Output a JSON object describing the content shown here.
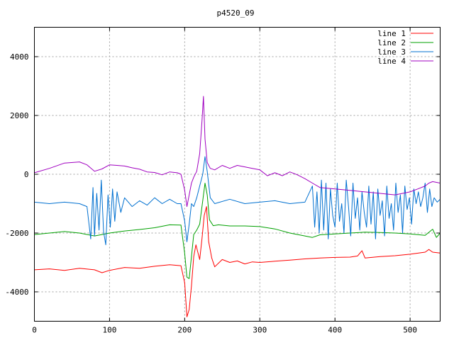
{
  "chart_data": {
    "type": "line",
    "title": "p4520_09",
    "xlabel": "",
    "ylabel": "",
    "xlim": [
      0,
      540
    ],
    "ylim": [
      -5000,
      5000
    ],
    "x_ticks": [
      0,
      100,
      200,
      300,
      400,
      500
    ],
    "y_ticks": [
      -4000,
      -2000,
      0,
      2000,
      4000
    ],
    "grid": true,
    "legend_position": "top-right",
    "series": [
      {
        "name": "line 1",
        "color": "#ff0000",
        "points": [
          [
            0,
            -3250
          ],
          [
            20,
            -3220
          ],
          [
            40,
            -3270
          ],
          [
            60,
            -3200
          ],
          [
            80,
            -3250
          ],
          [
            90,
            -3350
          ],
          [
            100,
            -3270
          ],
          [
            120,
            -3170
          ],
          [
            140,
            -3200
          ],
          [
            160,
            -3130
          ],
          [
            180,
            -3080
          ],
          [
            195,
            -3110
          ],
          [
            200,
            -3700
          ],
          [
            203,
            -4850
          ],
          [
            206,
            -4600
          ],
          [
            209,
            -3800
          ],
          [
            212,
            -2800
          ],
          [
            215,
            -2400
          ],
          [
            220,
            -2900
          ],
          [
            223,
            -2200
          ],
          [
            226,
            -1400
          ],
          [
            229,
            -1100
          ],
          [
            232,
            -2300
          ],
          [
            236,
            -2850
          ],
          [
            240,
            -3150
          ],
          [
            250,
            -2900
          ],
          [
            260,
            -3000
          ],
          [
            270,
            -2950
          ],
          [
            280,
            -3050
          ],
          [
            290,
            -2980
          ],
          [
            300,
            -3000
          ],
          [
            320,
            -2960
          ],
          [
            340,
            -2920
          ],
          [
            360,
            -2880
          ],
          [
            380,
            -2850
          ],
          [
            400,
            -2830
          ],
          [
            420,
            -2820
          ],
          [
            430,
            -2780
          ],
          [
            436,
            -2600
          ],
          [
            440,
            -2850
          ],
          [
            460,
            -2800
          ],
          [
            480,
            -2770
          ],
          [
            500,
            -2720
          ],
          [
            520,
            -2650
          ],
          [
            525,
            -2560
          ],
          [
            530,
            -2650
          ],
          [
            540,
            -2680
          ]
        ]
      },
      {
        "name": "line 2",
        "color": "#00a000",
        "points": [
          [
            0,
            -2050
          ],
          [
            20,
            -2000
          ],
          [
            40,
            -1950
          ],
          [
            60,
            -2000
          ],
          [
            80,
            -2100
          ],
          [
            90,
            -2050
          ],
          [
            100,
            -2000
          ],
          [
            120,
            -1930
          ],
          [
            140,
            -1880
          ],
          [
            160,
            -1820
          ],
          [
            180,
            -1720
          ],
          [
            195,
            -1730
          ],
          [
            200,
            -2700
          ],
          [
            203,
            -3500
          ],
          [
            206,
            -3550
          ],
          [
            209,
            -2800
          ],
          [
            212,
            -2050
          ],
          [
            216,
            -1900
          ],
          [
            220,
            -1700
          ],
          [
            224,
            -900
          ],
          [
            227,
            -300
          ],
          [
            230,
            -700
          ],
          [
            233,
            -1550
          ],
          [
            238,
            -1750
          ],
          [
            245,
            -1720
          ],
          [
            260,
            -1760
          ],
          [
            280,
            -1760
          ],
          [
            300,
            -1780
          ],
          [
            320,
            -1860
          ],
          [
            340,
            -2000
          ],
          [
            360,
            -2100
          ],
          [
            370,
            -2150
          ],
          [
            380,
            -2060
          ],
          [
            400,
            -2030
          ],
          [
            420,
            -2000
          ],
          [
            440,
            -1970
          ],
          [
            460,
            -1980
          ],
          [
            480,
            -2000
          ],
          [
            500,
            -2030
          ],
          [
            520,
            -2080
          ],
          [
            530,
            -1870
          ],
          [
            535,
            -2150
          ],
          [
            540,
            -2000
          ]
        ]
      },
      {
        "name": "line 3",
        "color": "#0070d0",
        "points": [
          [
            0,
            -950
          ],
          [
            20,
            -1000
          ],
          [
            40,
            -950
          ],
          [
            60,
            -1000
          ],
          [
            70,
            -1100
          ],
          [
            75,
            -2200
          ],
          [
            78,
            -450
          ],
          [
            80,
            -2100
          ],
          [
            83,
            -650
          ],
          [
            86,
            -1900
          ],
          [
            89,
            -200
          ],
          [
            92,
            -1950
          ],
          [
            95,
            -2400
          ],
          [
            98,
            -700
          ],
          [
            101,
            -1800
          ],
          [
            104,
            -500
          ],
          [
            107,
            -1600
          ],
          [
            110,
            -600
          ],
          [
            115,
            -1300
          ],
          [
            120,
            -800
          ],
          [
            130,
            -1100
          ],
          [
            140,
            -900
          ],
          [
            150,
            -1050
          ],
          [
            160,
            -800
          ],
          [
            170,
            -1000
          ],
          [
            180,
            -850
          ],
          [
            190,
            -1000
          ],
          [
            195,
            -1000
          ],
          [
            200,
            -1600
          ],
          [
            203,
            -2300
          ],
          [
            206,
            -1700
          ],
          [
            209,
            -1000
          ],
          [
            212,
            -1100
          ],
          [
            216,
            -800
          ],
          [
            220,
            -400
          ],
          [
            224,
            0
          ],
          [
            227,
            600
          ],
          [
            230,
            100
          ],
          [
            234,
            -800
          ],
          [
            240,
            -1000
          ],
          [
            260,
            -850
          ],
          [
            280,
            -1000
          ],
          [
            300,
            -950
          ],
          [
            320,
            -900
          ],
          [
            340,
            -1000
          ],
          [
            360,
            -950
          ],
          [
            370,
            -400
          ],
          [
            373,
            -1800
          ],
          [
            376,
            -600
          ],
          [
            379,
            -2000
          ],
          [
            382,
            -200
          ],
          [
            385,
            -1900
          ],
          [
            388,
            -300
          ],
          [
            391,
            -2200
          ],
          [
            394,
            -500
          ],
          [
            397,
            -1400
          ],
          [
            400,
            -1800
          ],
          [
            403,
            -300
          ],
          [
            406,
            -1600
          ],
          [
            409,
            -1000
          ],
          [
            412,
            -2000
          ],
          [
            415,
            -200
          ],
          [
            418,
            -1100
          ],
          [
            421,
            -2100
          ],
          [
            424,
            -300
          ],
          [
            427,
            -1500
          ],
          [
            430,
            -800
          ],
          [
            433,
            -1900
          ],
          [
            436,
            -600
          ],
          [
            439,
            -1300
          ],
          [
            442,
            -1800
          ],
          [
            445,
            -400
          ],
          [
            448,
            -1700
          ],
          [
            451,
            -600
          ],
          [
            454,
            -2200
          ],
          [
            457,
            -500
          ],
          [
            460,
            -1400
          ],
          [
            463,
            -900
          ],
          [
            466,
            -2100
          ],
          [
            469,
            -400
          ],
          [
            472,
            -1500
          ],
          [
            475,
            -1000
          ],
          [
            478,
            -1900
          ],
          [
            481,
            -300
          ],
          [
            484,
            -1300
          ],
          [
            487,
            -700
          ],
          [
            490,
            -2000
          ],
          [
            493,
            -400
          ],
          [
            496,
            -1200
          ],
          [
            499,
            -800
          ],
          [
            502,
            -1700
          ],
          [
            505,
            -500
          ],
          [
            508,
            -1000
          ],
          [
            511,
            -600
          ],
          [
            514,
            -1100
          ],
          [
            517,
            -800
          ],
          [
            520,
            -300
          ],
          [
            523,
            -1300
          ],
          [
            526,
            -500
          ],
          [
            529,
            -1100
          ],
          [
            532,
            -800
          ],
          [
            536,
            -950
          ],
          [
            540,
            -850
          ]
        ]
      },
      {
        "name": "line 4",
        "color": "#a000c0",
        "points": [
          [
            0,
            50
          ],
          [
            20,
            200
          ],
          [
            40,
            380
          ],
          [
            60,
            420
          ],
          [
            70,
            320
          ],
          [
            80,
            100
          ],
          [
            90,
            180
          ],
          [
            100,
            320
          ],
          [
            110,
            300
          ],
          [
            120,
            280
          ],
          [
            130,
            220
          ],
          [
            140,
            170
          ],
          [
            150,
            80
          ],
          [
            160,
            60
          ],
          [
            170,
            -20
          ],
          [
            180,
            80
          ],
          [
            190,
            50
          ],
          [
            195,
            0
          ],
          [
            200,
            -550
          ],
          [
            203,
            -1100
          ],
          [
            206,
            -700
          ],
          [
            209,
            -300
          ],
          [
            212,
            -100
          ],
          [
            216,
            100
          ],
          [
            220,
            700
          ],
          [
            223,
            1800
          ],
          [
            225,
            2650
          ],
          [
            227,
            1200
          ],
          [
            230,
            400
          ],
          [
            234,
            200
          ],
          [
            240,
            150
          ],
          [
            250,
            300
          ],
          [
            260,
            200
          ],
          [
            270,
            300
          ],
          [
            280,
            250
          ],
          [
            290,
            200
          ],
          [
            300,
            150
          ],
          [
            310,
            -50
          ],
          [
            320,
            50
          ],
          [
            330,
            -50
          ],
          [
            340,
            80
          ],
          [
            350,
            -20
          ],
          [
            360,
            -150
          ],
          [
            370,
            -300
          ],
          [
            380,
            -450
          ],
          [
            400,
            -500
          ],
          [
            420,
            -550
          ],
          [
            440,
            -600
          ],
          [
            460,
            -650
          ],
          [
            480,
            -700
          ],
          [
            500,
            -600
          ],
          [
            510,
            -500
          ],
          [
            520,
            -400
          ],
          [
            525,
            -300
          ],
          [
            530,
            -250
          ],
          [
            540,
            -300
          ]
        ]
      }
    ]
  }
}
